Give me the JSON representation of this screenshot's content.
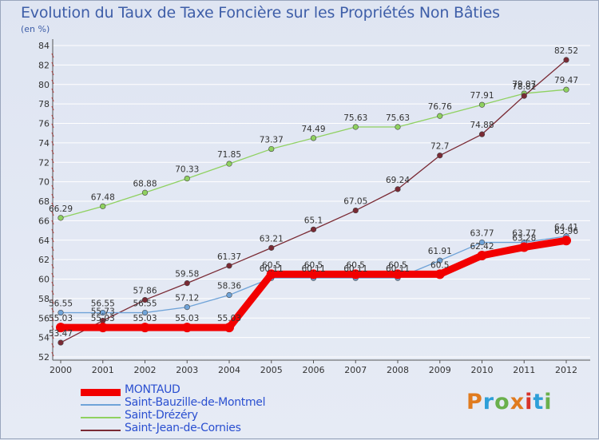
{
  "header": {
    "title": "Evolution du Taux de Taxe Foncière sur les Propriétés Non Bâties",
    "unit": "(en %)"
  },
  "logo": {
    "text": "Proxiti",
    "colors": [
      "#e07b1f",
      "#2e9fd8",
      "#6ab04c",
      "#e07b1f",
      "#d8332a",
      "#2e9fd8",
      "#6ab04c"
    ]
  },
  "chart_data": {
    "type": "line",
    "title": "Evolution du Taux de Taxe Foncière sur les Propriétés Non Bâties",
    "ylabel": "(en %)",
    "xlabel": "",
    "x": [
      "2000",
      "2001",
      "2002",
      "2003",
      "2004",
      "2005",
      "2006",
      "2007",
      "2008",
      "2009",
      "2010",
      "2011",
      "2012"
    ],
    "ylim": [
      52,
      84
    ],
    "yticks": [
      52,
      54,
      56,
      58,
      60,
      62,
      64,
      66,
      68,
      70,
      72,
      74,
      76,
      78,
      80,
      82,
      84
    ],
    "grid": "horizontal",
    "legend_position": "bottom-left",
    "series": [
      {
        "name": "MONTAUD",
        "color": "#f20000",
        "values": [
          55.03,
          55.03,
          55.03,
          55.03,
          55.03,
          60.5,
          60.5,
          60.5,
          60.5,
          60.5,
          62.42,
          63.28,
          63.96
        ],
        "labels": [
          "55.03",
          "55.03",
          "55.03",
          "55.03",
          "55.03",
          "60.5",
          "60.5",
          "60.5",
          "60.5",
          "60.5",
          "62.42",
          "63.28",
          "63.96"
        ]
      },
      {
        "name": "Saint-Bauzille-de-Montmel",
        "color": "#6fa3d8",
        "values": [
          56.55,
          56.55,
          56.55,
          57.12,
          58.36,
          60.11,
          60.11,
          60.11,
          60.11,
          61.91,
          63.77,
          63.77,
          64.41
        ],
        "labels": [
          "56.55",
          "56.55",
          "56.55",
          "57.12",
          "58.36",
          "60.11",
          "60.11",
          "60.11",
          "60.11",
          "61.91",
          "63.77",
          "63.77",
          "64.41"
        ]
      },
      {
        "name": "Saint-Drézéry",
        "color": "#8fd160",
        "values": [
          66.29,
          67.48,
          68.88,
          70.33,
          71.85,
          73.37,
          74.49,
          75.63,
          75.63,
          76.76,
          77.91,
          79.07,
          79.47
        ],
        "labels": [
          "66.29",
          "67.48",
          "68.88",
          "70.33",
          "71.85",
          "73.37",
          "74.49",
          "75.63",
          "75.63",
          "76.76",
          "77.91",
          "79.07",
          "79.47"
        ]
      },
      {
        "name": "Saint-Jean-de-Cornies",
        "color": "#7a2a34",
        "values": [
          53.47,
          55.73,
          57.86,
          59.58,
          61.37,
          63.21,
          65.1,
          67.05,
          69.24,
          72.7,
          74.88,
          78.82,
          82.52
        ],
        "labels": [
          "53.47",
          "55.73",
          "57.86",
          "59.58",
          "61.37",
          "63.21",
          "65.1",
          "67.05",
          "69.24",
          "72.7",
          "74.88",
          "78.82",
          "82.52"
        ]
      }
    ]
  }
}
